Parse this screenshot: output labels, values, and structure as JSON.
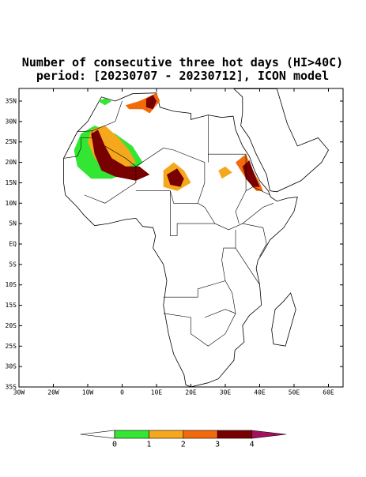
{
  "title": {
    "line1": "Number of consecutive three hot days (HI>40C)",
    "line2": "period: [20230707 - 20230712], ICON model"
  },
  "lat_labels": [
    "35N",
    "30N",
    "25N",
    "20N",
    "15N",
    "10N",
    "5N",
    "EQ",
    "5S",
    "10S",
    "15S",
    "20S",
    "25S",
    "30S",
    "35S"
  ],
  "lon_labels": [
    "30W",
    "20W",
    "10W",
    "0",
    "10E",
    "20E",
    "30E",
    "40E",
    "50E",
    "60E"
  ],
  "colorbar": {
    "levels": [
      0,
      1,
      2,
      3,
      4
    ],
    "colors": [
      "#ffffff",
      "#33e633",
      "#f5a81c",
      "#f26a0a",
      "#780000",
      "#a3105e"
    ]
  }
}
